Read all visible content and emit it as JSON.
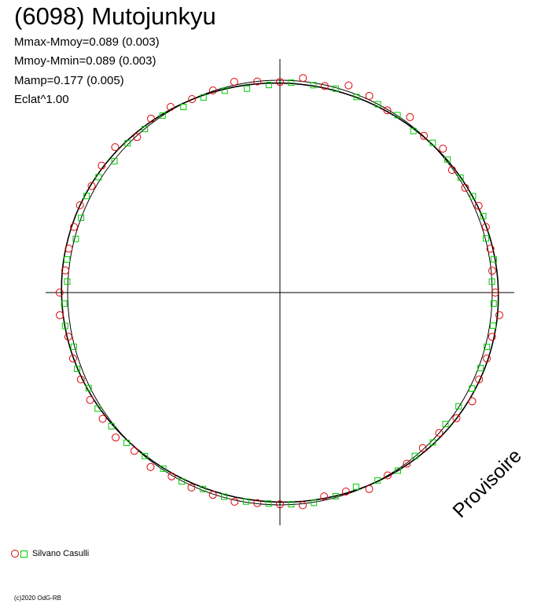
{
  "header": {
    "title": "(6098) Mutojunkyu",
    "stats": [
      "Mmax-Mmoy=0.089 (0.003)",
      "Mmoy-Mmin=0.089 (0.003)",
      "Mamp=0.177 (0.005)",
      "Eclat^1.00"
    ]
  },
  "legend": {
    "label": "Silvano Casulli"
  },
  "watermark": "Provisoire",
  "footer": {
    "copyright": "(c)2020 OdG-RB"
  },
  "colors": {
    "circle_marker": "#e00000",
    "square_marker": "#00cc00",
    "axes": "#000000"
  },
  "chart_data": {
    "type": "scatter",
    "projection": "polar",
    "series": [
      {
        "name": "Silvano Casulli",
        "marker": "circle",
        "points": [
          [
            0.0,
            0.913
          ],
          [
            6.0,
            0.905
          ],
          [
            12.0,
            0.912
          ],
          [
            18.0,
            0.918
          ],
          [
            24.0,
            0.922
          ],
          [
            30.0,
            0.906
          ],
          [
            36.0,
            0.902
          ],
          [
            42.0,
            0.93
          ],
          [
            48.0,
            0.912
          ],
          [
            54.0,
            0.938
          ],
          [
            60.0,
            0.91
          ],
          [
            66.0,
            0.931
          ],
          [
            72.0,
            0.942
          ],
          [
            78.0,
            0.913
          ],
          [
            84.0,
            0.933
          ],
          [
            90.0,
            0.911
          ],
          [
            96.0,
            0.918
          ],
          [
            102.0,
            0.932
          ],
          [
            108.0,
            0.919
          ],
          [
            114.0,
            0.916
          ],
          [
            120.0,
            0.927
          ],
          [
            126.0,
            0.93
          ],
          [
            132.0,
            0.905
          ],
          [
            138.0,
            0.94
          ],
          [
            144.0,
            0.934
          ],
          [
            150.0,
            0.922
          ],
          [
            156.0,
            0.928
          ],
          [
            162.0,
            0.918
          ],
          [
            168.0,
            0.915
          ],
          [
            174.0,
            0.915
          ],
          [
            180.0,
            0.934
          ],
          [
            186.0,
            0.938
          ],
          [
            192.0,
            0.917
          ],
          [
            198.0,
            0.922
          ],
          [
            204.0,
            0.924
          ],
          [
            210.0,
            0.929
          ],
          [
            216.0,
            0.929
          ],
          [
            222.0,
            0.937
          ],
          [
            228.0,
            0.922
          ],
          [
            234.0,
            0.933
          ],
          [
            240.0,
            0.918
          ],
          [
            246.0,
            0.923
          ],
          [
            252.0,
            0.92
          ],
          [
            258.0,
            0.925
          ],
          [
            264.0,
            0.916
          ],
          [
            270.0,
            0.916
          ],
          [
            276.0,
            0.925
          ],
          [
            282.0,
            0.901
          ],
          [
            288.0,
            0.905
          ],
          [
            294.0,
            0.93
          ],
          [
            300.0,
            0.913
          ],
          [
            306.0,
            0.915
          ],
          [
            312.0,
            0.905
          ],
          [
            318.0,
            0.908
          ],
          [
            324.0,
            0.925
          ],
          [
            330.0,
            0.941
          ],
          [
            336.0,
            0.924
          ],
          [
            342.0,
            0.922
          ],
          [
            348.0,
            0.919
          ],
          [
            354.0,
            0.935
          ]
        ]
      },
      {
        "name": "Silvano Casulli",
        "marker": "square",
        "points": [
          [
            3.0,
            0.9
          ],
          [
            9.0,
            0.918
          ],
          [
            15.0,
            0.904
          ],
          [
            21.0,
            0.923
          ],
          [
            27.0,
            0.918
          ],
          [
            33.0,
            0.913
          ],
          [
            39.0,
            0.914
          ],
          [
            45.0,
            0.916
          ],
          [
            51.0,
            0.899
          ],
          [
            57.0,
            0.915
          ],
          [
            63.0,
            0.914
          ],
          [
            69.0,
            0.906
          ],
          [
            75.0,
            0.913
          ],
          [
            81.0,
            0.908
          ],
          [
            87.0,
            0.909
          ],
          [
            93.0,
            0.899
          ],
          [
            99.0,
            0.893
          ],
          [
            105.0,
            0.904
          ],
          [
            111.0,
            0.904
          ],
          [
            117.0,
            0.901
          ],
          [
            123.0,
            0.913
          ],
          [
            129.0,
            0.91
          ],
          [
            135.0,
            0.913
          ],
          [
            141.0,
            0.903
          ],
          [
            147.0,
            0.917
          ],
          [
            153.0,
            0.92
          ],
          [
            159.0,
            0.903
          ],
          [
            165.0,
            0.896
          ],
          [
            171.0,
            0.914
          ],
          [
            177.0,
            0.903
          ],
          [
            183.0,
            0.916
          ],
          [
            189.0,
            0.922
          ],
          [
            195.0,
            0.905
          ],
          [
            201.0,
            0.921
          ],
          [
            207.0,
            0.91
          ],
          [
            213.0,
            0.921
          ],
          [
            219.0,
            0.919
          ],
          [
            225.0,
            0.919
          ],
          [
            231.0,
            0.91
          ],
          [
            237.0,
            0.908
          ],
          [
            243.0,
            0.917
          ],
          [
            249.0,
            0.91
          ],
          [
            255.0,
            0.914
          ],
          [
            261.0,
            0.915
          ],
          [
            267.0,
            0.914
          ],
          [
            273.0,
            0.917
          ],
          [
            279.0,
            0.921
          ],
          [
            285.0,
            0.912
          ],
          [
            291.0,
            0.9
          ],
          [
            297.0,
            0.912
          ],
          [
            303.0,
            0.918
          ],
          [
            309.0,
            0.909
          ],
          [
            315.0,
            0.917
          ],
          [
            321.0,
            0.903
          ],
          [
            327.0,
            0.903
          ],
          [
            333.0,
            0.914
          ],
          [
            339.0,
            0.911
          ],
          [
            345.0,
            0.908
          ],
          [
            351.0,
            0.915
          ],
          [
            357.0,
            0.907
          ]
        ]
      }
    ],
    "reference_circle_radius": 0.9,
    "grid": false,
    "legend_position": "bottom-left"
  }
}
